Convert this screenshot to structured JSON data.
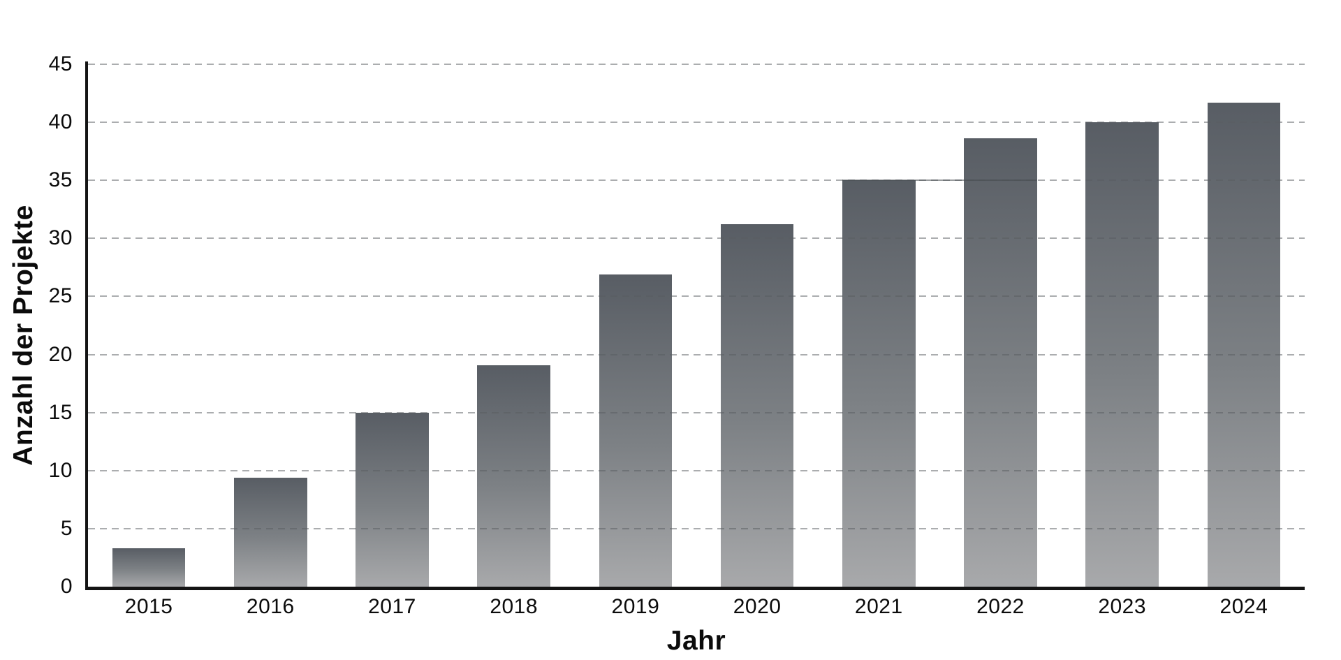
{
  "chart_data": {
    "type": "bar",
    "title": "",
    "xlabel": "Jahr",
    "ylabel": "Anzahl der Projekte",
    "categories": [
      "2015",
      "2016",
      "2017",
      "2018",
      "2019",
      "2020",
      "2021",
      "2022",
      "2023",
      "2024"
    ],
    "values": [
      3.3,
      9.4,
      15,
      19.1,
      26.9,
      31.2,
      35,
      38.6,
      40,
      41.7
    ],
    "ylim": [
      0,
      45
    ],
    "ytick_step": 5,
    "yticks": [
      0,
      5,
      10,
      15,
      20,
      25,
      30,
      35,
      40,
      45
    ],
    "grid": "horizontal-dashed",
    "legend": "none",
    "solid_segment": {
      "value": 35,
      "from_category": "2021",
      "to_category": "2022"
    },
    "colors": {
      "bar_gradient_top": "#585d64",
      "bar_gradient_bottom": "#a8a9ab",
      "gridline": "#ababab",
      "axis": "#141414",
      "text": "#0b0b0b",
      "background": "#ffffff"
    }
  }
}
